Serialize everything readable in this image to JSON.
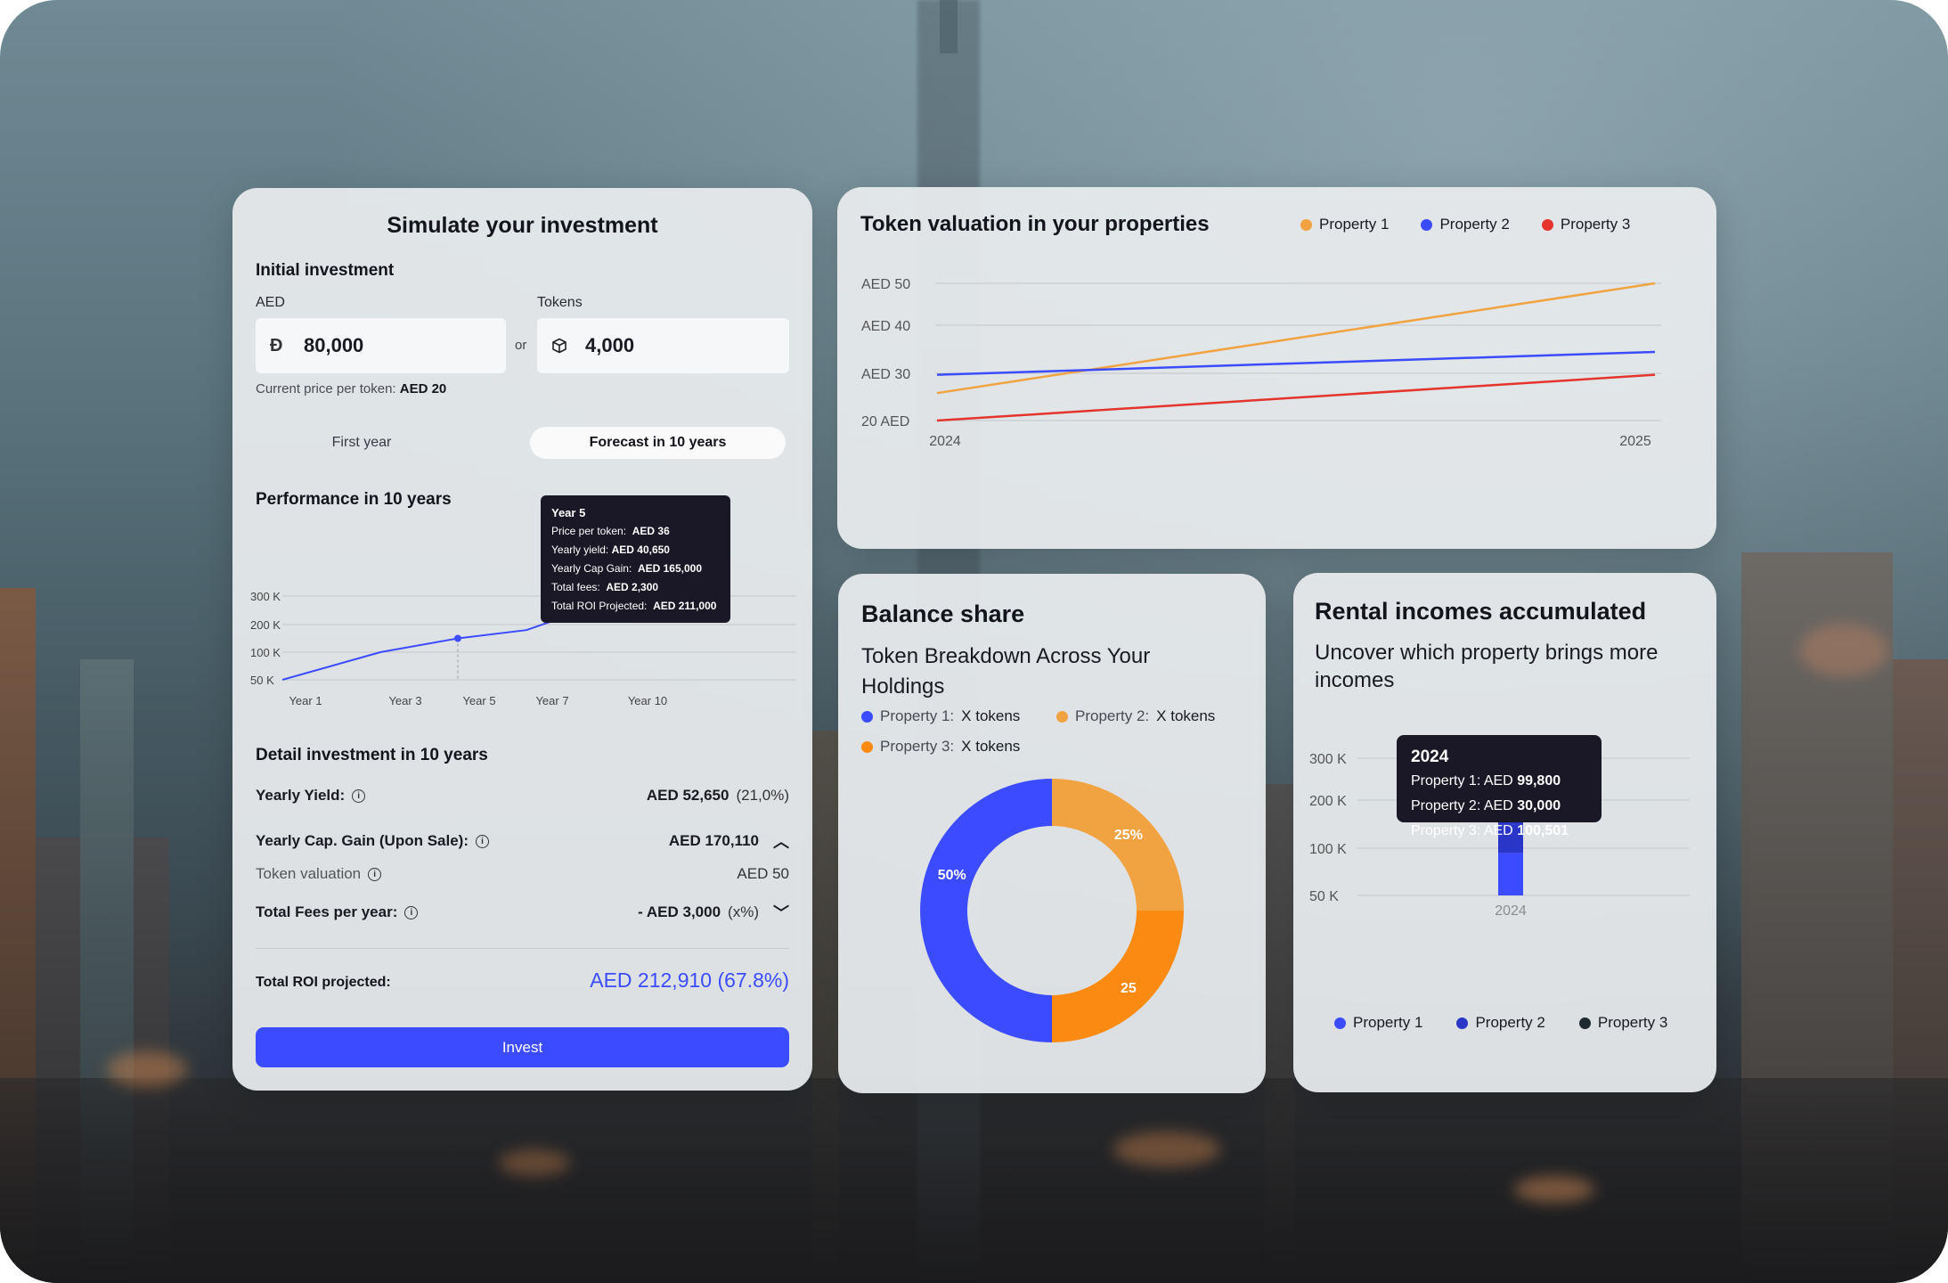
{
  "simulator": {
    "title": "Simulate your investment",
    "initial_label": "Initial investment",
    "aed_label": "AED",
    "tokens_label": "Tokens",
    "aed_value": "80,000",
    "tokens_value": "4,000",
    "or": "or",
    "price_hint_prefix": "Current price per token:",
    "price_hint_value": "AED 20",
    "toggle_first": "First year",
    "toggle_forecast": "Forecast in 10 years",
    "performance_title": "Performance in 10 years",
    "chart_data": {
      "type": "line",
      "categories": [
        "Year 1",
        "Year 3",
        "Year 5",
        "Year 7",
        "Year 10"
      ],
      "values": [
        50,
        100,
        150,
        180,
        300
      ],
      "yticks": [
        "300 K",
        "200 K",
        "100 K",
        "50 K"
      ],
      "color": "#3b4bff"
    },
    "tooltip": {
      "title": "Year 5",
      "rows": [
        {
          "k": "Price per token:",
          "v": "AED 36"
        },
        {
          "k": "Yearly yield:",
          "v": "AED 40,650"
        },
        {
          "k": "Yearly Cap Gain:",
          "v": "AED 165,000"
        },
        {
          "k": "Total fees:",
          "v": "AED 2,300"
        },
        {
          "k": "Total ROI Projected:",
          "v": "AED 211,000"
        }
      ]
    },
    "detail_title": "Detail investment in 10 years",
    "yield_label": "Yearly Yield:",
    "yield_value": "AED 52,650",
    "yield_pct": "(21,0%)",
    "capgain_label": "Yearly Cap. Gain (Upon Sale):",
    "capgain_value": "AED 170,110",
    "valuation_label": "Token valuation",
    "valuation_value": "AED 50",
    "fees_label": "Total Fees per year:",
    "fees_value": "- AED 3,000",
    "fees_pct": "(x%)",
    "roi_label": "Total ROI projected:",
    "roi_value": "AED 212,910 (67.8%)",
    "invest_label": "Invest"
  },
  "valuation": {
    "title": "Token valuation in your properties",
    "chart_data": {
      "type": "line",
      "x": [
        "2024",
        "2025"
      ],
      "yticks": [
        "AED 50",
        "AED 40",
        "AED 30",
        "20 AED"
      ],
      "series": [
        {
          "name": "Property 1",
          "color": "#f2a341",
          "values": [
            26,
            50
          ]
        },
        {
          "name": "Property 2",
          "color": "#3b4bff",
          "values": [
            30,
            35
          ]
        },
        {
          "name": "Property 3",
          "color": "#e5342c",
          "values": [
            20,
            30
          ]
        }
      ]
    }
  },
  "balance": {
    "title": "Balance share",
    "subtitle": "Token Breakdown Across Your Holdings",
    "legend": [
      {
        "name": "Property 1:",
        "value": "X tokens",
        "color": "#3b4bff"
      },
      {
        "name": "Property 2:",
        "value": "X tokens",
        "color": "#f2a341"
      },
      {
        "name": "Property 3:",
        "value": "X tokens",
        "color": "#fb8a12"
      }
    ],
    "chart_data": {
      "type": "pie",
      "slices": [
        {
          "label": "25%",
          "value": 25,
          "color": "#f2a341"
        },
        {
          "label": "25",
          "value": 25,
          "color": "#fb8a12"
        },
        {
          "label": "50%",
          "value": 50,
          "color": "#3b4bff"
        }
      ]
    }
  },
  "rental": {
    "title": "Rental incomes accumulated",
    "subtitle": "Uncover which property brings more incomes",
    "chart_data": {
      "type": "bar",
      "categories": [
        "2024"
      ],
      "yticks": [
        "300 K",
        "200 K",
        "100 K",
        "50 K"
      ],
      "series": [
        {
          "name": "Property 1",
          "color": "#3b4bff",
          "values": [
            99800
          ]
        },
        {
          "name": "Property 2",
          "color": "#2a36c8",
          "values": [
            30000
          ]
        },
        {
          "name": "Property 3",
          "color": "#1f2a2e",
          "values": [
            100501
          ]
        }
      ]
    },
    "tooltip": {
      "title": "2024",
      "rows": [
        {
          "k": "Property 1:",
          "v": "AED",
          "b": "99,800"
        },
        {
          "k": "Property 2:",
          "v": "AED",
          "b": "30,000"
        },
        {
          "k": "Property 3:",
          "v": "AED",
          "b": "100,501"
        }
      ]
    },
    "legend": [
      {
        "name": "Property 1",
        "color": "#3b4bff"
      },
      {
        "name": "Property 2",
        "color": "#2a36c8"
      },
      {
        "name": "Property 3",
        "color": "#1f2a2e"
      }
    ]
  }
}
